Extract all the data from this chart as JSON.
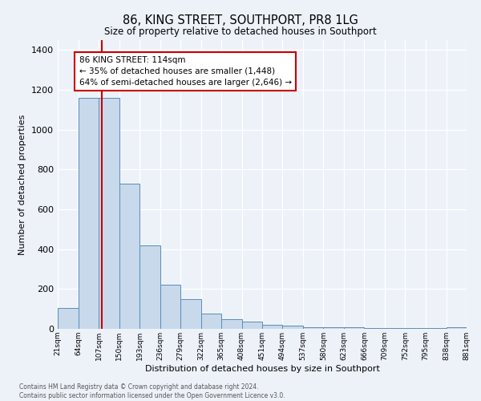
{
  "title": "86, KING STREET, SOUTHPORT, PR8 1LG",
  "subtitle": "Size of property relative to detached houses in Southport",
  "xlabel": "Distribution of detached houses by size in Southport",
  "ylabel": "Number of detached properties",
  "bar_edges": [
    21,
    64,
    107,
    150,
    193,
    236,
    279,
    322,
    365,
    408,
    451,
    494,
    537,
    580,
    623,
    666,
    709,
    752,
    795,
    838,
    881
  ],
  "bar_heights": [
    105,
    1160,
    1160,
    730,
    420,
    220,
    150,
    75,
    50,
    35,
    20,
    15,
    10,
    8,
    8,
    5,
    5,
    3,
    3,
    8
  ],
  "bar_color": "#c8d9eb",
  "bar_edge_color": "#5b8db8",
  "vline_x": 114,
  "vline_color": "#cc0000",
  "annotation_title": "86 KING STREET: 114sqm",
  "annotation_line1": "← 35% of detached houses are smaller (1,448)",
  "annotation_line2": "64% of semi-detached houses are larger (2,646) →",
  "annotation_box_color": "#ffffff",
  "annotation_box_edge": "#cc0000",
  "ylim": [
    0,
    1450
  ],
  "yticks": [
    0,
    200,
    400,
    600,
    800,
    1000,
    1200,
    1400
  ],
  "tick_labels": [
    "21sqm",
    "64sqm",
    "107sqm",
    "150sqm",
    "193sqm",
    "236sqm",
    "279sqm",
    "322sqm",
    "365sqm",
    "408sqm",
    "451sqm",
    "494sqm",
    "537sqm",
    "580sqm",
    "623sqm",
    "666sqm",
    "709sqm",
    "752sqm",
    "795sqm",
    "838sqm",
    "881sqm"
  ],
  "footer_line1": "Contains HM Land Registry data © Crown copyright and database right 2024.",
  "footer_line2": "Contains public sector information licensed under the Open Government Licence v3.0.",
  "bg_color": "#edf2f9",
  "plot_bg_color": "#edf2f9"
}
